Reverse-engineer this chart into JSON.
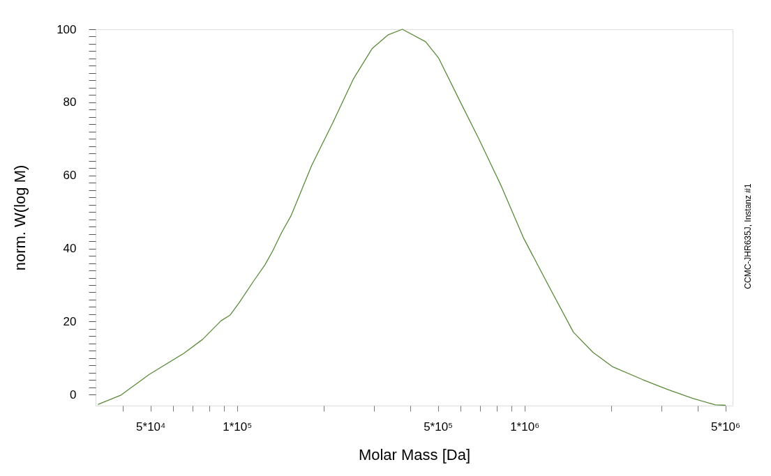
{
  "chart_data": {
    "type": "line",
    "xlabel": "Molar Mass [Da]",
    "ylabel": "norm. W(log M)",
    "log": "x",
    "grid": false,
    "marker": "none",
    "line_style": "solid",
    "xlim": [
      32200,
      5300000
    ],
    "xticks": [
      {
        "value": 40000,
        "label": null
      },
      {
        "value": 50000,
        "label": "5*10⁴"
      },
      {
        "value": 60000,
        "label": null
      },
      {
        "value": 70000,
        "label": null
      },
      {
        "value": 80000,
        "label": null
      },
      {
        "value": 90000,
        "label": null
      },
      {
        "value": 100000,
        "label": "1*10⁵"
      },
      {
        "value": 200000,
        "label": null
      },
      {
        "value": 300000,
        "label": null
      },
      {
        "value": 400000,
        "label": null
      },
      {
        "value": 500000,
        "label": "5*10⁵"
      },
      {
        "value": 600000,
        "label": null
      },
      {
        "value": 700000,
        "label": null
      },
      {
        "value": 800000,
        "label": null
      },
      {
        "value": 900000,
        "label": null
      },
      {
        "value": 1000000,
        "label": "1*10⁶"
      },
      {
        "value": 2000000,
        "label": null
      },
      {
        "value": 3000000,
        "label": null
      },
      {
        "value": 4000000,
        "label": null
      },
      {
        "value": 5000000,
        "label": "5*10⁶"
      }
    ],
    "ylim": [
      -3,
      100
    ],
    "yticks": [
      0,
      {
        "value": 2,
        "label": null
      },
      {
        "value": 4,
        "label": null
      },
      {
        "value": 6,
        "label": null
      },
      {
        "value": 8,
        "label": null
      },
      {
        "value": 10,
        "label": null
      },
      {
        "value": 12,
        "label": null
      },
      {
        "value": 14,
        "label": null
      },
      {
        "value": 16,
        "label": null
      },
      {
        "value": 18,
        "label": null
      },
      20,
      {
        "value": 22,
        "label": null
      },
      {
        "value": 24,
        "label": null
      },
      {
        "value": 26,
        "label": null
      },
      {
        "value": 28,
        "label": null
      },
      {
        "value": 30,
        "label": null
      },
      {
        "value": 32,
        "label": null
      },
      {
        "value": 34,
        "label": null
      },
      {
        "value": 36,
        "label": null
      },
      {
        "value": 38,
        "label": null
      },
      40,
      {
        "value": 42,
        "label": null
      },
      {
        "value": 44,
        "label": null
      },
      {
        "value": 46,
        "label": null
      },
      {
        "value": 48,
        "label": null
      },
      {
        "value": 50,
        "label": null
      },
      {
        "value": 52,
        "label": null
      },
      {
        "value": 54,
        "label": null
      },
      {
        "value": 56,
        "label": null
      },
      {
        "value": 58,
        "label": null
      },
      60,
      {
        "value": 62,
        "label": null
      },
      {
        "value": 64,
        "label": null
      },
      {
        "value": 66,
        "label": null
      },
      {
        "value": 68,
        "label": null
      },
      {
        "value": 70,
        "label": null
      },
      {
        "value": 72,
        "label": null
      },
      {
        "value": 74,
        "label": null
      },
      {
        "value": 76,
        "label": null
      },
      {
        "value": 78,
        "label": null
      },
      80,
      {
        "value": 82,
        "label": null
      },
      {
        "value": 84,
        "label": null
      },
      {
        "value": 86,
        "label": null
      },
      {
        "value": 88,
        "label": null
      },
      {
        "value": 90,
        "label": null
      },
      {
        "value": 92,
        "label": null
      },
      {
        "value": 94,
        "label": null
      },
      {
        "value": 96,
        "label": null
      },
      {
        "value": 98,
        "label": null
      },
      100
    ],
    "annotations": [
      "CCMC-JHR635J, Instanz #1"
    ],
    "series": [
      {
        "color": "#5a8a3a",
        "x": [
          32800,
          39500,
          49400,
          65300,
          75800,
          87900,
          94700,
          102000,
          114000,
          125000,
          133000,
          143000,
          154000,
          182000,
          215000,
          254000,
          295000,
          336000,
          376000,
          453000,
          503000,
          601000,
          692000,
          828000,
          991000,
          1210000,
          1480000,
          1730000,
          2030000,
          2580000,
          3150000,
          3850000,
          4610000,
          5010000
        ],
        "values": [
          -2.7,
          -0.1,
          5.5,
          11.3,
          15.1,
          20.2,
          21.8,
          25.3,
          31.0,
          35.5,
          39.3,
          44.4,
          48.9,
          62.8,
          74.3,
          86.4,
          94.7,
          98.5,
          100,
          96.6,
          92.1,
          79.8,
          70.2,
          57.3,
          43.0,
          30.0,
          17.1,
          11.6,
          7.6,
          4.1,
          1.4,
          -1.0,
          -2.8,
          -2.9
        ]
      }
    ]
  }
}
